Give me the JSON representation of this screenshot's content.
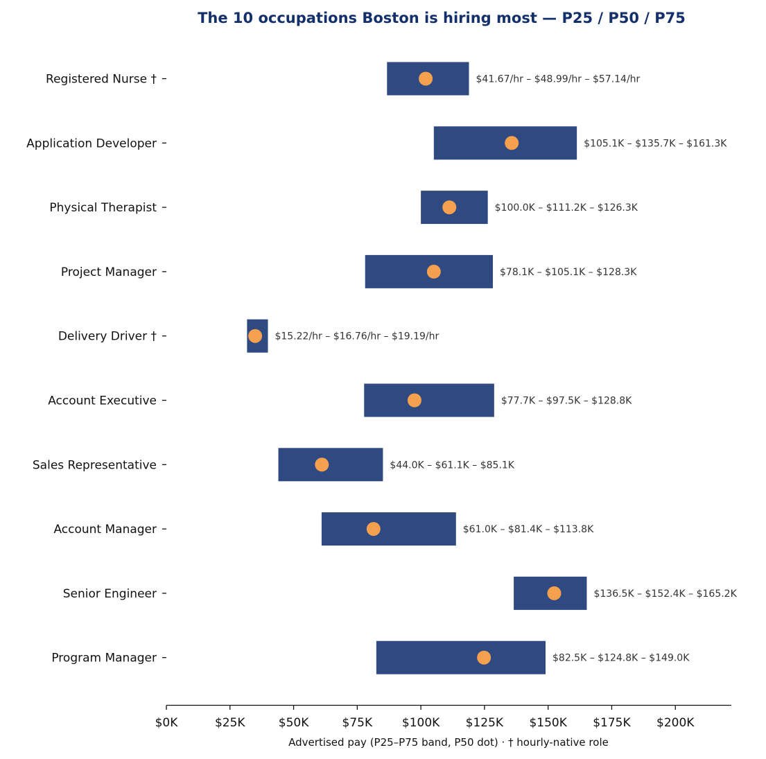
{
  "chart_data": {
    "type": "range-bar",
    "title": "The 10 occupations Boston is hiring most — P25 / P50 / P75",
    "xlabel": "Advertised pay (P25–P75 band, P50 dot) · † hourly-native role",
    "ylabel": "",
    "xlim": [
      0,
      222000
    ],
    "x_ticks": [
      0,
      25000,
      50000,
      75000,
      100000,
      125000,
      150000,
      175000,
      200000
    ],
    "x_tick_labels": [
      "$0K",
      "$25K",
      "$50K",
      "$75K",
      "$100K",
      "$125K",
      "$150K",
      "$175K",
      "$200K"
    ],
    "grid": false,
    "legend": "none",
    "colors": {
      "band": "#2f4a80",
      "median": "#f4a04e",
      "title": "#14306b"
    },
    "categories": [
      "Registered Nurse †",
      "Application Developer",
      "Physical Therapist",
      "Project Manager",
      "Delivery Driver †",
      "Account Executive",
      "Sales Representative",
      "Account Manager",
      "Senior Engineer",
      "Program Manager"
    ],
    "p25": [
      86700,
      105100,
      100000,
      78100,
      31700,
      77700,
      44000,
      61000,
      136500,
      82500
    ],
    "p50": [
      101900,
      135700,
      111200,
      105100,
      34900,
      97500,
      61100,
      81400,
      152400,
      124800
    ],
    "p75": [
      118900,
      161300,
      126300,
      128300,
      39900,
      128800,
      85100,
      113800,
      165200,
      149000
    ],
    "labels": [
      "$41.67/hr – $48.99/hr – $57.14/hr",
      "$105.1K – $135.7K – $161.3K",
      "$100.0K – $111.2K – $126.3K",
      "$78.1K – $105.1K – $128.3K",
      "$15.22/hr – $16.76/hr – $19.19/hr",
      "$77.7K – $97.5K – $128.8K",
      "$44.0K – $61.1K – $85.1K",
      "$61.0K – $81.4K – $113.8K",
      "$136.5K – $152.4K – $165.2K",
      "$82.5K – $124.8K – $149.0K"
    ]
  }
}
